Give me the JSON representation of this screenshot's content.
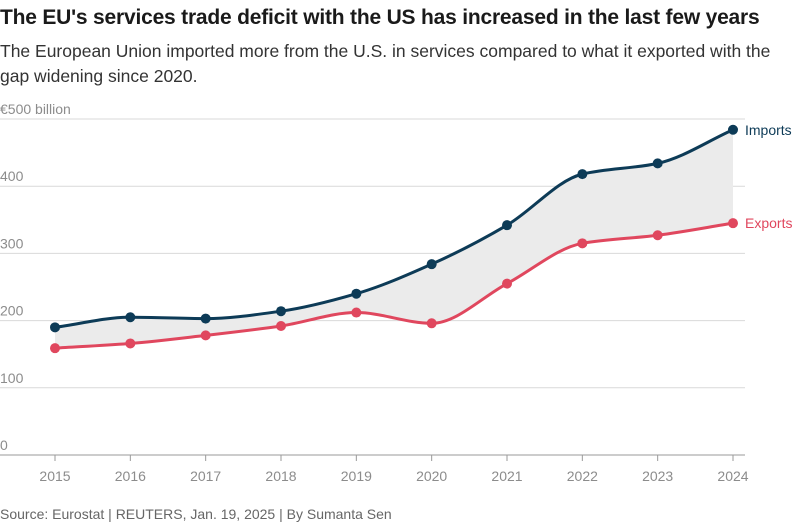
{
  "title": "The EU's services trade deficit with the US has increased in the last few years",
  "subtitle": "The European Union imported more from the U.S. in services compared to what it exported with the gap widening since 2020.",
  "source": "Source: Eurostat | REUTERS, Jan. 19, 2025 | By Sumanta Sen",
  "chart_data": {
    "type": "line",
    "title": "The EU's services trade deficit with the US has increased in the last few years",
    "subtitle": "The European Union imported more from the U.S. in services compared to what it exported with the gap widening since 2020.",
    "x": [
      2015,
      2016,
      2017,
      2018,
      2019,
      2020,
      2021,
      2022,
      2023,
      2024
    ],
    "x_tick_labels": [
      "2015",
      "2016",
      "2017",
      "2018",
      "2019",
      "2020",
      "2021",
      "2022",
      "2023",
      "2024"
    ],
    "ylim": [
      0,
      500
    ],
    "y_ticks": [
      0,
      100,
      200,
      300,
      400,
      500
    ],
    "y_tick_labels": [
      "0",
      "100",
      "200",
      "300",
      "400",
      "€500 billion"
    ],
    "grid": true,
    "shaded_gap_between_series": true,
    "series": [
      {
        "name": "Imports",
        "color": "#0d3b57",
        "values": [
          190,
          205,
          203,
          214,
          240,
          284,
          342,
          418,
          434,
          484
        ]
      },
      {
        "name": "Exports",
        "color": "#e0475e",
        "values": [
          159,
          166,
          178,
          192,
          212,
          196,
          255,
          315,
          327,
          345
        ]
      }
    ],
    "gap_fill_color": "#ebebeb",
    "axis_color": "#9a9a9a",
    "grid_color": "#d9d9d9"
  }
}
